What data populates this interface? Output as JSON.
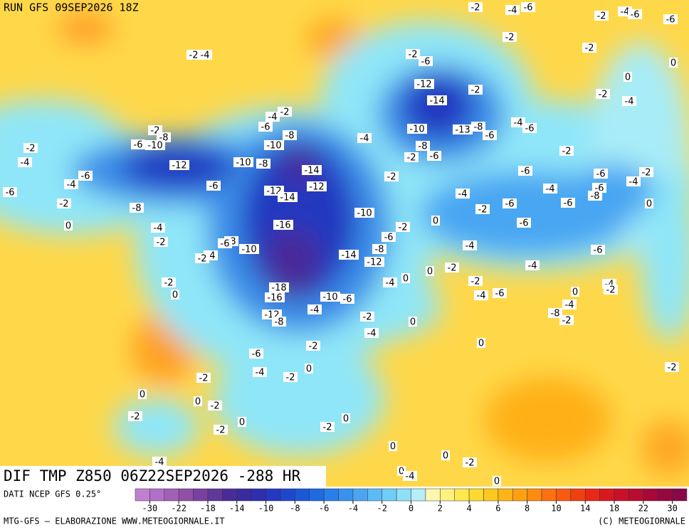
{
  "header": {
    "run": "RUN GFS 09SEP2026 18Z"
  },
  "footer": {
    "title": "DIF TMP Z850 06Z22SEP2026 -288 HR",
    "source": "DATI NCEP GFS 0.25°",
    "credit": "MTG-GFS — ELABORAZIONE WWW.METEOGIORNALE.IT",
    "copyright": "(C) METEOGIORNALE"
  },
  "legend": {
    "ticks": [
      -30,
      -22,
      -18,
      -14,
      -10,
      -8,
      -6,
      -4,
      -2,
      0,
      2,
      4,
      6,
      8,
      10,
      14,
      18,
      22,
      30
    ],
    "colors": [
      "#c080d0",
      "#b070c8",
      "#a060b8",
      "#9050a8",
      "#7a40a0",
      "#603898",
      "#4a2c98",
      "#3a2aa0",
      "#2e2eb0",
      "#2438c0",
      "#1e48cc",
      "#1a58d8",
      "#1e6ae0",
      "#2a7ee8",
      "#3a92ee",
      "#4aa6f2",
      "#5cbaf4",
      "#70cdf6",
      "#8ee0f8",
      "#b6eefa",
      "#fff6b0",
      "#fff080",
      "#ffe850",
      "#ffd830",
      "#ffc820",
      "#ffb418",
      "#ffa010",
      "#ff8a10",
      "#ff7010",
      "#f85a10",
      "#f04010",
      "#e82818",
      "#d81820",
      "#c81028",
      "#b80c30",
      "#a80838",
      "#980840",
      "#880848"
    ]
  },
  "map": {
    "contour_labels": [
      -2,
      -4,
      -6,
      -2,
      -4,
      -6,
      -6,
      -2,
      -2,
      0,
      -2,
      -4,
      -2,
      -6,
      -12,
      -2,
      -14,
      -2,
      -4,
      0,
      -2,
      -4,
      -6,
      -8,
      -10,
      -4,
      -10,
      -13,
      -8,
      -6,
      -4,
      -6,
      -2,
      -8,
      -6,
      -10,
      -2,
      -4,
      -12,
      -10,
      -8,
      -14,
      -8,
      -6,
      -2,
      -2,
      -6,
      -6,
      -2,
      -4,
      -2,
      -6,
      -4,
      -6,
      -12,
      -14,
      -12,
      -6,
      -4,
      -4,
      -6,
      -8,
      -2,
      -8,
      -2,
      -6,
      -6,
      0,
      -10,
      0,
      -16,
      -6,
      -2,
      0,
      -4,
      -6,
      -8,
      -6,
      -2,
      -4,
      -10,
      -8,
      -14,
      -12,
      -4,
      -2,
      -6,
      0,
      0,
      -2,
      -4,
      -18,
      -4,
      -2,
      -2,
      0,
      -16,
      -10,
      -6,
      -4,
      -6,
      0,
      -4,
      -2,
      -4,
      -12,
      -8,
      -4,
      -8,
      -2,
      -2,
      0,
      -4,
      -2,
      0,
      -6,
      0,
      -4,
      -2,
      -2,
      -2,
      0,
      0,
      -2,
      -2,
      0,
      -2,
      0,
      -2,
      0,
      0,
      -2,
      -4,
      0,
      -4,
      0
    ]
  }
}
